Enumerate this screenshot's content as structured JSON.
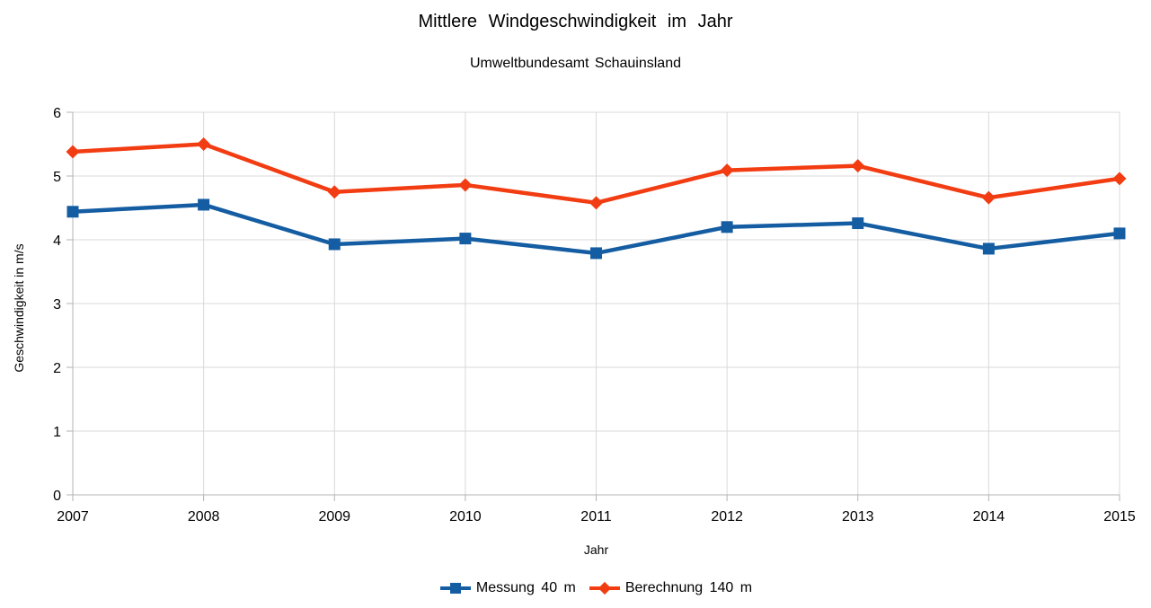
{
  "chart_data": {
    "type": "line",
    "title": "Mittlere Windgeschwindigkeit im Jahr",
    "subtitle": "Umweltbundesamt Schauinsland",
    "xlabel": "Jahr",
    "ylabel": "Geschwindigkeit in m/s",
    "categories": [
      "2007",
      "2008",
      "2009",
      "2010",
      "2011",
      "2012",
      "2013",
      "2014",
      "2015"
    ],
    "series": [
      {
        "name": "Messung 40 m",
        "marker": "square",
        "color": "#155DA2",
        "values": [
          4.44,
          4.55,
          3.93,
          4.02,
          3.79,
          4.2,
          4.26,
          3.86,
          4.1
        ]
      },
      {
        "name": "Berechnung 140 m",
        "marker": "diamond",
        "color": "#F23C12",
        "values": [
          5.38,
          5.5,
          4.75,
          4.86,
          4.58,
          5.09,
          5.16,
          4.66,
          4.96
        ]
      }
    ],
    "ylim": [
      0,
      6
    ],
    "yticks": [
      0,
      1,
      2,
      3,
      4,
      5,
      6
    ],
    "grid": true,
    "legend_position": "bottom",
    "colors": {
      "grid": "#D9D9D9",
      "axis": "#B3B3B3",
      "text": "#000000",
      "background": "#FFFFFF"
    }
  }
}
